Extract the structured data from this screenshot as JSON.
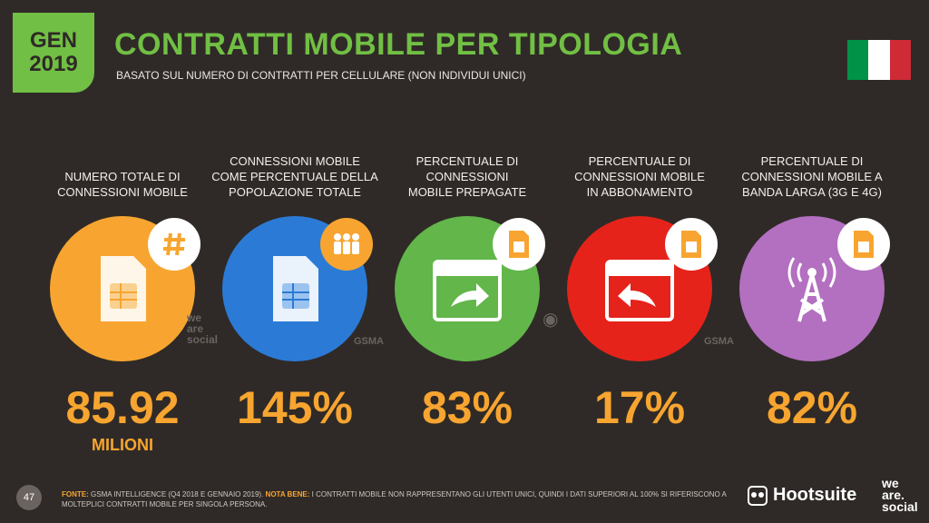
{
  "badge": {
    "line1": "GEN",
    "line2": "2019"
  },
  "header": {
    "title": "CONTRATTI MOBILE PER TIPOLOGIA",
    "subtitle": "BASATO SUL NUMERO DI CONTRATTI PER CELLULARE (NON INDIVIDUI UNICI)"
  },
  "flag": {
    "colors": [
      "#009246",
      "#ffffff",
      "#ce2b37"
    ]
  },
  "colors": {
    "accent": "#71bf44",
    "value": "#f7a530",
    "background": "#2f2a27",
    "orange": "#f7a530",
    "blue": "#2b7bd6",
    "green": "#62b64a",
    "red": "#e5231b",
    "purple": "#b36fc0"
  },
  "stats": [
    {
      "label_lines": [
        "NUMERO TOTALE DI",
        "CONNESSIONI MOBILE"
      ],
      "value": "85.92",
      "unit": "MILIONI",
      "color": "#f7a530",
      "icon": "sim-card-icon",
      "badge_icon": "hash-icon"
    },
    {
      "label_lines": [
        "CONNESSIONI MOBILE",
        "COME PERCENTUALE DELLA",
        "POPOLAZIONE TOTALE"
      ],
      "value": "145%",
      "color": "#2b7bd6",
      "icon": "sim-card-icon",
      "badge_icon": "people-icon"
    },
    {
      "label_lines": [
        "PERCENTUALE DI",
        "CONNESSIONI",
        "MOBILE PREPAGATE"
      ],
      "value": "83%",
      "color": "#62b64a",
      "icon": "calendar-forward-icon",
      "badge_icon": "sim-card-icon"
    },
    {
      "label_lines": [
        "PERCENTUALE DI",
        "CONNESSIONI MOBILE",
        "IN ABBONAMENTO"
      ],
      "value": "17%",
      "color": "#e5231b",
      "icon": "calendar-back-icon",
      "badge_icon": "sim-card-icon"
    },
    {
      "label_lines": [
        "PERCENTUALE DI",
        "CONNESSIONI MOBILE A",
        "BANDA LARGA (3G E 4G)"
      ],
      "value": "82%",
      "color": "#b36fc0",
      "icon": "antenna-tower-icon",
      "badge_icon": "sim-card-icon"
    }
  ],
  "watermarks": {
    "we_are_social": [
      "we",
      "are",
      "social"
    ],
    "gsma": "GSMA"
  },
  "footer": {
    "page_number": "47",
    "fonte_label": "FONTE:",
    "fonte_text": "GSMA INTELLIGENCE (Q4 2018 E GENNAIO 2019).",
    "nota_label": "NOTA BENE:",
    "nota_text": "I CONTRATTI MOBILE NON RAPPRESENTANO GLI UTENTI UNICI, QUINDI I DATI SUPERIORI AL 100% SI RIFERISCONO A MOLTEPLICI CONTRATTI MOBILE PER SINGOLA PERSONA."
  },
  "brands": {
    "hootsuite": "Hootsuite",
    "we_are_social": [
      "we",
      "are.",
      "social"
    ]
  }
}
